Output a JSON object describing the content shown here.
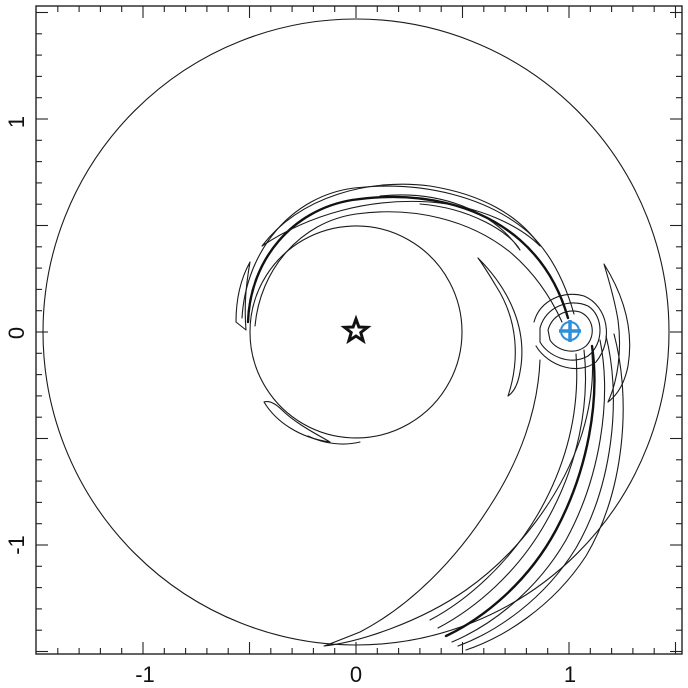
{
  "figure": {
    "x_tick_labels": [
      "-1",
      "0",
      "1"
    ],
    "y_tick_labels": [
      "1",
      "0",
      "-1"
    ]
  },
  "colors": {
    "line": "#1a1a1a",
    "planet_marker": "#2f8fd8",
    "background": "#ffffff"
  },
  "icons": {
    "star": "star-icon",
    "planet": "planet-marker-icon"
  }
}
